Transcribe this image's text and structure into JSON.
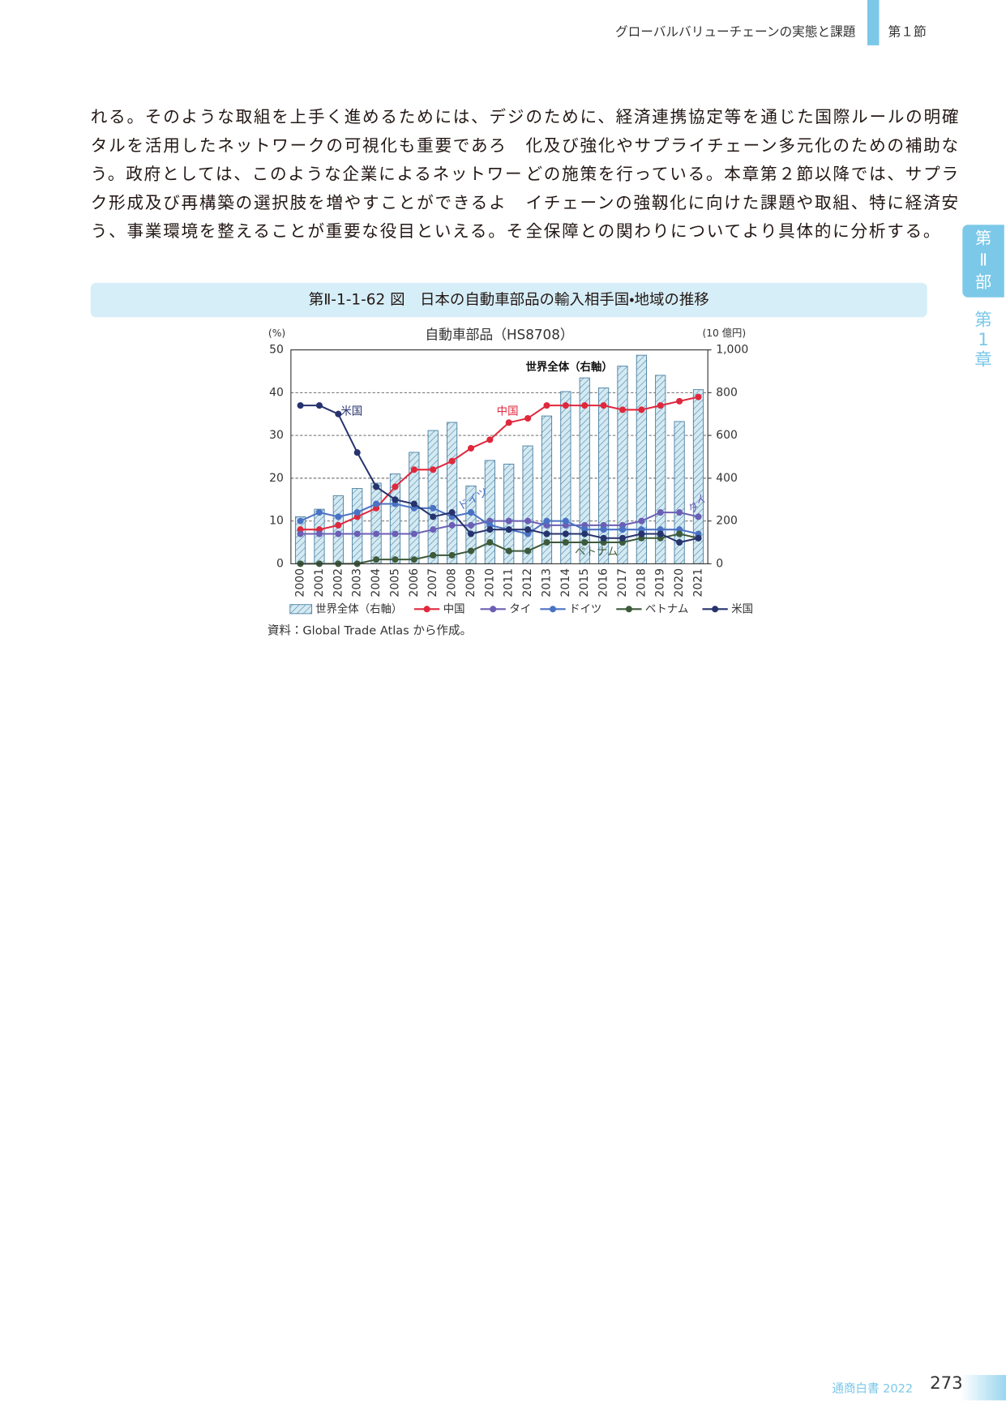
{
  "header": {
    "section_title": "グローバルバリューチェーンの実態と課題",
    "section_number": "第１節"
  },
  "body": {
    "left_lines": [
      "れる。そのような取組を上手く進めるためには、デジ",
      "タルを活用したネットワークの可視化も重要であろ",
      "う。政府としては、このような企業によるネットワー",
      "ク形成及び再構築の選択肢を増やすことができるよ",
      "う、事業環境を整えることが重要な役目といえる。そ"
    ],
    "right_lines": [
      "のために、経済連携協定等を通じた国際ルールの明確",
      "化及び強化やサプライチェーン多元化のための補助な",
      "どの施策を行っている。本章第２節以降では、サプラ",
      "イチェーンの強靱化に向けた課題や取組、特に経済安",
      "全保障との関わりについてより具体的に分析する。"
    ]
  },
  "side_tab": {
    "part": [
      "第",
      "Ⅱ",
      "部"
    ],
    "chapter": [
      "第",
      "1",
      "章"
    ]
  },
  "figure_title": "第Ⅱ-1-1-62 図　日本の自動車部品の輸入相手国・地域の推移",
  "chart_data": {
    "type": "combo",
    "title": "自動車部品（HS8708）",
    "y_unit": "(%)",
    "y2_unit": "(10 億円)",
    "categories": [
      "2000",
      "2001",
      "2002",
      "2003",
      "2004",
      "2005",
      "2006",
      "2007",
      "2008",
      "2009",
      "2010",
      "2011",
      "2012",
      "2013",
      "2014",
      "2015",
      "2016",
      "2017",
      "2018",
      "2019",
      "2020",
      "2021"
    ],
    "ylim": [
      0,
      50
    ],
    "yticks": [
      0,
      10,
      20,
      30,
      40,
      50
    ],
    "y2lim": [
      0,
      1000
    ],
    "y2ticks": [
      0,
      200,
      400,
      600,
      800,
      {
        "value": 1000,
        "label": "1,000"
      }
    ],
    "grid": true,
    "series": [
      {
        "name": "世界全体（右軸）",
        "type": "bar",
        "axis": "y2",
        "color": "#4a7fa0",
        "values": [
          220,
          255,
          318,
          352,
          377,
          420,
          521,
          623,
          661,
          364,
          483,
          466,
          551,
          691,
          805,
          869,
          822,
          924,
          975,
          881,
          665,
          814
        ]
      },
      {
        "name": "中国",
        "type": "line",
        "color": "#e0283c",
        "values": [
          8,
          8,
          9,
          11,
          13,
          18,
          22,
          22,
          24,
          27,
          29,
          33,
          34,
          37,
          37,
          37,
          37,
          36,
          36,
          37,
          38,
          39
        ]
      },
      {
        "name": "タイ",
        "type": "line",
        "color": "#6b5fb5",
        "values": [
          7,
          7,
          7,
          7,
          7,
          7,
          7,
          8,
          9,
          9,
          10,
          10,
          10,
          9,
          9,
          9,
          9,
          9,
          10,
          12,
          12,
          11
        ]
      },
      {
        "name": "ドイツ",
        "type": "line",
        "color": "#4a72c4",
        "values": [
          10,
          12,
          11,
          12,
          14,
          14,
          13,
          13,
          11,
          12,
          9,
          8,
          7,
          10,
          10,
          8,
          8,
          8,
          8,
          8,
          8,
          7
        ]
      },
      {
        "name": "ベトナム",
        "type": "line",
        "color": "#3d5a3a",
        "values": [
          0,
          0,
          0,
          0,
          1,
          1,
          1,
          2,
          2,
          3,
          5,
          3,
          3,
          5,
          5,
          5,
          5,
          5,
          6,
          6,
          7,
          6
        ]
      },
      {
        "name": "米国",
        "type": "line",
        "color": "#27336e",
        "values": [
          37,
          37,
          35,
          26,
          18,
          15,
          14,
          11,
          12,
          7,
          8,
          8,
          8,
          7,
          7,
          7,
          6,
          6,
          7,
          7,
          5,
          6
        ]
      }
    ],
    "annotations": [
      "世界全体（右軸）",
      "米国",
      "中国",
      "ドイツ",
      "タイ",
      "ベトナム"
    ]
  },
  "source": "資料：Global Trade Atlas から作成。",
  "footer": {
    "book": "通商白書 2022",
    "page": "273"
  }
}
